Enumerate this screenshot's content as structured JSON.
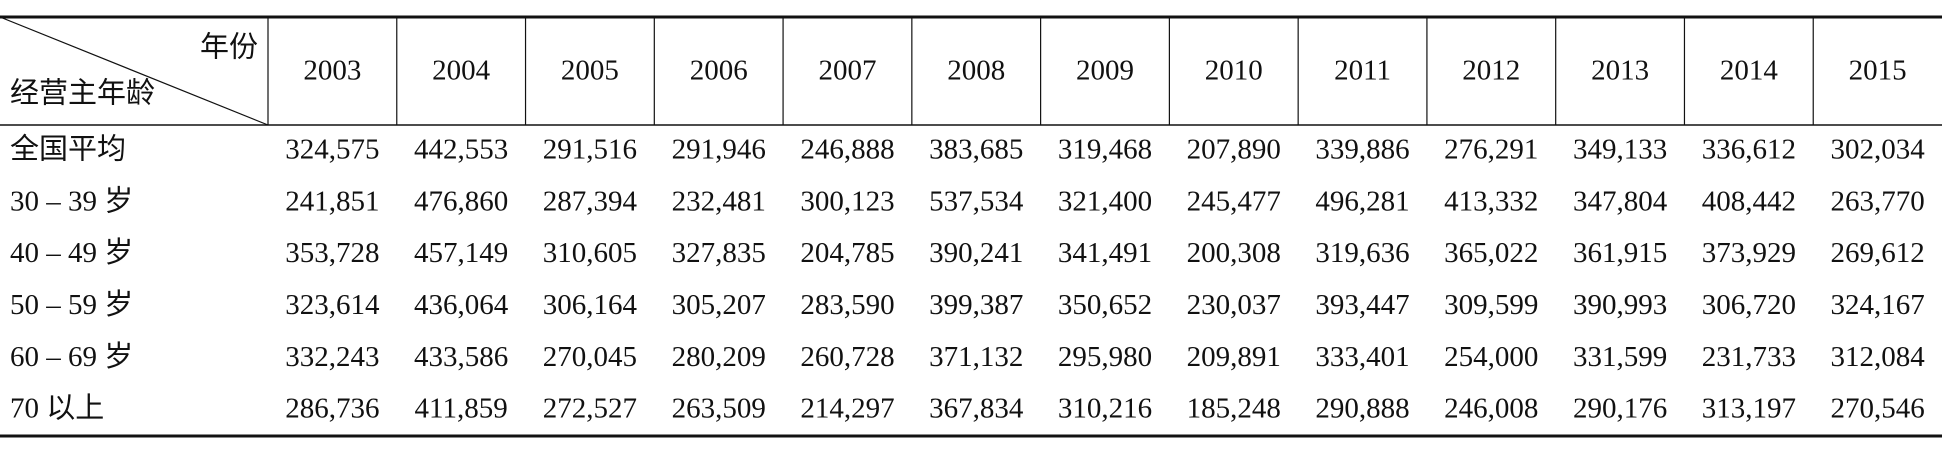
{
  "table": {
    "corner": {
      "top": "年份",
      "bottom": "经营主年龄"
    },
    "columns": [
      "2003",
      "2004",
      "2005",
      "2006",
      "2007",
      "2008",
      "2009",
      "2010",
      "2011",
      "2012",
      "2013",
      "2014",
      "2015"
    ],
    "rows": [
      {
        "label": "全国平均",
        "values": [
          "324,575",
          "442,553",
          "291,516",
          "291,946",
          "246,888",
          "383,685",
          "319,468",
          "207,890",
          "339,886",
          "276,291",
          "349,133",
          "336,612",
          "302,034"
        ]
      },
      {
        "label": "30 – 39 岁",
        "values": [
          "241,851",
          "476,860",
          "287,394",
          "232,481",
          "300,123",
          "537,534",
          "321,400",
          "245,477",
          "496,281",
          "413,332",
          "347,804",
          "408,442",
          "263,770"
        ]
      },
      {
        "label": "40 – 49 岁",
        "values": [
          "353,728",
          "457,149",
          "310,605",
          "327,835",
          "204,785",
          "390,241",
          "341,491",
          "200,308",
          "319,636",
          "365,022",
          "361,915",
          "373,929",
          "269,612"
        ]
      },
      {
        "label": "50 – 59 岁",
        "values": [
          "323,614",
          "436,064",
          "306,164",
          "305,207",
          "283,590",
          "399,387",
          "350,652",
          "230,037",
          "393,447",
          "309,599",
          "390,993",
          "306,720",
          "324,167"
        ]
      },
      {
        "label": "60 – 69 岁",
        "values": [
          "332,243",
          "433,586",
          "270,045",
          "280,209",
          "260,728",
          "371,132",
          "295,980",
          "209,891",
          "333,401",
          "254,000",
          "331,599",
          "231,733",
          "312,084"
        ]
      },
      {
        "label": "70 以上",
        "values": [
          "286,736",
          "411,859",
          "272,527",
          "263,509",
          "214,297",
          "367,834",
          "310,216",
          "185,248",
          "290,888",
          "246,008",
          "290,176",
          "313,197",
          "270,546"
        ]
      }
    ]
  }
}
